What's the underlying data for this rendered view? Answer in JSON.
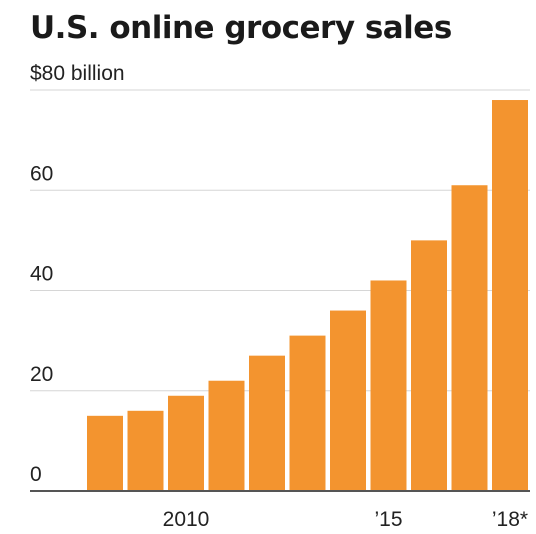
{
  "chart_data": {
    "type": "bar",
    "title": "U.S. online grocery sales",
    "ylabel": "",
    "xlabel": "",
    "unit_label": "$80 billion",
    "ylim": [
      0,
      80
    ],
    "y_ticks": [
      {
        "value": 0,
        "label": "0"
      },
      {
        "value": 20,
        "label": "20"
      },
      {
        "value": 40,
        "label": "40"
      },
      {
        "value": 60,
        "label": "60"
      },
      {
        "value": 80,
        "label": "$80 billion"
      }
    ],
    "categories": [
      "2008",
      "2009",
      "2010",
      "2011",
      "2012",
      "2013",
      "2014",
      "2015",
      "2016",
      "2017",
      "2018"
    ],
    "x_tick_labels": [
      {
        "category": "2010",
        "label": "2010"
      },
      {
        "category": "2015",
        "label": "’15"
      },
      {
        "category": "2018",
        "label": "’18*"
      }
    ],
    "values": [
      15,
      16,
      19,
      22,
      27,
      31,
      36,
      42,
      50,
      61,
      78
    ],
    "bar_color": "#F3942F",
    "grid": true,
    "legend": "none"
  }
}
